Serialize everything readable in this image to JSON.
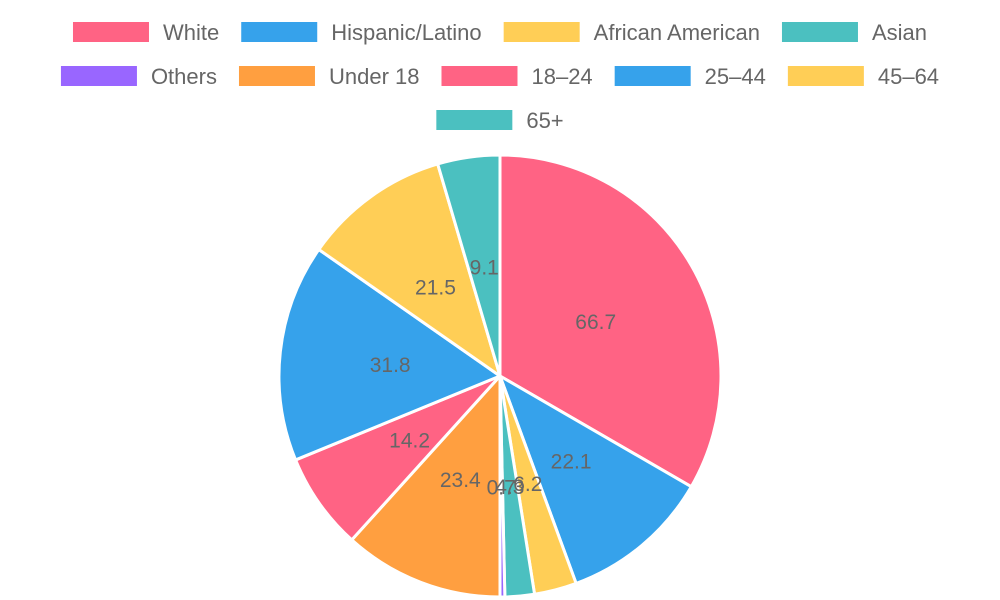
{
  "chart_data": {
    "type": "pie",
    "categories": [
      "White",
      "Hispanic/Latino",
      "African American",
      "Asian",
      "Others",
      "Under 18",
      "18–24",
      "25–44",
      "45–64",
      "65+"
    ],
    "values": [
      66.7,
      22.1,
      6.2,
      4.3,
      0.7,
      23.4,
      14.2,
      31.8,
      21.5,
      9.1
    ],
    "legend_position": "top"
  },
  "colors": {
    "White": "#ff6384",
    "Hispanic/Latino": "#36a2eb",
    "African American": "#ffce56",
    "Asian": "#4bc0c0",
    "Others": "#9966ff",
    "Under 18": "#ff9f40",
    "18–24": "#ff6384",
    "25–44": "#36a2eb",
    "45–64": "#ffce56",
    "65+": "#4bc0c0"
  }
}
